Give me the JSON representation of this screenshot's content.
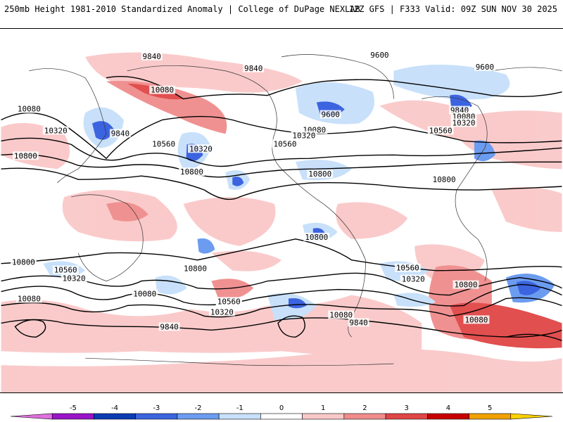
{
  "header": {
    "title": "250mb Height 1981-2010 Standardized Anomaly | College of DuPage NEXLAB",
    "run": "12Z GFS | F333 Valid: 09Z SUN NOV 30 2025"
  },
  "colorbar": {
    "ticks": [
      "-5",
      "-4",
      "-3",
      "-2",
      "-1",
      "0",
      "1",
      "2",
      "3",
      "4",
      "5"
    ],
    "colors": [
      "#e070e0",
      "#9a14c8",
      "#0c3cb4",
      "#3c64e0",
      "#6c9cf0",
      "#c8e0fa",
      "#ffffff",
      "#fac8c8",
      "#f08c8c",
      "#e04646",
      "#c80000",
      "#f0a000",
      "#ffd200"
    ]
  },
  "contour_labels": [
    {
      "id": "c1",
      "text": "9840"
    },
    {
      "id": "c2",
      "text": "9840"
    },
    {
      "id": "c3",
      "text": "9600"
    },
    {
      "id": "c4",
      "text": "9600"
    },
    {
      "id": "c5",
      "text": "9600"
    },
    {
      "id": "c6",
      "text": "10080"
    },
    {
      "id": "c7",
      "text": "10080"
    },
    {
      "id": "c8",
      "text": "10320"
    },
    {
      "id": "c9",
      "text": "9840"
    },
    {
      "id": "c10",
      "text": "10560"
    },
    {
      "id": "c11",
      "text": "10320"
    },
    {
      "id": "c12",
      "text": "10800"
    },
    {
      "id": "c13",
      "text": "10800"
    },
    {
      "id": "c14",
      "text": "10560"
    },
    {
      "id": "c15",
      "text": "10080"
    },
    {
      "id": "c16",
      "text": "10320"
    },
    {
      "id": "c17",
      "text": "10560"
    },
    {
      "id": "c18",
      "text": "10800"
    },
    {
      "id": "c19",
      "text": "10800"
    },
    {
      "id": "c20",
      "text": "9840"
    },
    {
      "id": "c21",
      "text": "10080"
    },
    {
      "id": "c22",
      "text": "10320"
    },
    {
      "id": "c23",
      "text": "10560"
    },
    {
      "id": "c24",
      "text": "10800"
    },
    {
      "id": "c25",
      "text": "10800"
    },
    {
      "id": "c26",
      "text": "10560"
    },
    {
      "id": "c27",
      "text": "10320"
    },
    {
      "id": "c28",
      "text": "10080"
    },
    {
      "id": "c29",
      "text": "10800"
    },
    {
      "id": "c30",
      "text": "10560"
    },
    {
      "id": "c31",
      "text": "10320"
    },
    {
      "id": "c32",
      "text": "10080"
    },
    {
      "id": "c33",
      "text": "10560"
    },
    {
      "id": "c34",
      "text": "10320"
    },
    {
      "id": "c35",
      "text": "10080"
    },
    {
      "id": "c36",
      "text": "9840"
    },
    {
      "id": "c37",
      "text": "10080"
    },
    {
      "id": "c38",
      "text": "9840"
    },
    {
      "id": "c39",
      "text": "10800"
    }
  ]
}
